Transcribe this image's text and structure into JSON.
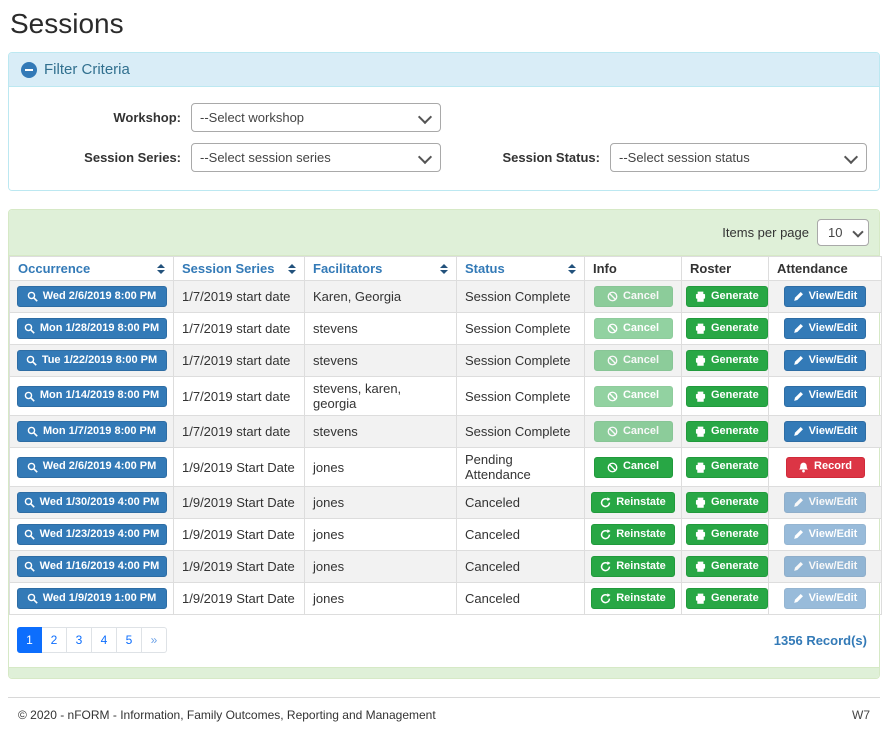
{
  "page": {
    "title": "Sessions"
  },
  "filter_panel": {
    "title": "Filter Criteria",
    "collapse_icon": "minus-circle-icon",
    "fields": {
      "workshop": {
        "label": "Workshop:",
        "selected": "--Select workshop"
      },
      "session_series": {
        "label": "Session Series:",
        "selected": "--Select session series"
      },
      "session_status": {
        "label": "Session Status:",
        "selected": "--Select session status"
      }
    }
  },
  "sessions_panel": {
    "items_per_page": {
      "label": "Items per page",
      "selected": "10"
    },
    "columns": [
      {
        "label": "Occurrence",
        "sortable": true
      },
      {
        "label": "Session Series",
        "sortable": true
      },
      {
        "label": "Facilitators",
        "sortable": true
      },
      {
        "label": "Status",
        "sortable": true
      },
      {
        "label": "Info",
        "sortable": false
      },
      {
        "label": "Roster",
        "sortable": false
      },
      {
        "label": "Attendance",
        "sortable": false
      }
    ],
    "rows": [
      {
        "occurrence": {
          "icon": "search",
          "label": "Wed 2/6/2019 8:00 PM"
        },
        "session_series": "1/7/2019 start date",
        "facilitators": "Karen, Georgia",
        "status": "Session Complete",
        "info": {
          "label": "Cancel",
          "icon": "ban",
          "color": "green",
          "disabled": true
        },
        "roster": {
          "label": "Generate",
          "icon": "printer",
          "color": "green",
          "disabled": false
        },
        "attendance": {
          "label": "View/Edit",
          "icon": "pencil",
          "color": "blue",
          "disabled": false
        }
      },
      {
        "occurrence": {
          "icon": "search",
          "label": "Mon 1/28/2019 8:00 PM"
        },
        "session_series": "1/7/2019 start date",
        "facilitators": "stevens",
        "status": "Session Complete",
        "info": {
          "label": "Cancel",
          "icon": "ban",
          "color": "green",
          "disabled": true
        },
        "roster": {
          "label": "Generate",
          "icon": "printer",
          "color": "green",
          "disabled": false
        },
        "attendance": {
          "label": "View/Edit",
          "icon": "pencil",
          "color": "blue",
          "disabled": false
        }
      },
      {
        "occurrence": {
          "icon": "search",
          "label": "Tue 1/22/2019 8:00 PM"
        },
        "session_series": "1/7/2019 start date",
        "facilitators": "stevens",
        "status": "Session Complete",
        "info": {
          "label": "Cancel",
          "icon": "ban",
          "color": "green",
          "disabled": true
        },
        "roster": {
          "label": "Generate",
          "icon": "printer",
          "color": "green",
          "disabled": false
        },
        "attendance": {
          "label": "View/Edit",
          "icon": "pencil",
          "color": "blue",
          "disabled": false
        }
      },
      {
        "occurrence": {
          "icon": "search",
          "label": "Mon 1/14/2019 8:00 PM"
        },
        "session_series": "1/7/2019 start date",
        "facilitators": "stevens, karen, georgia",
        "status": "Session Complete",
        "info": {
          "label": "Cancel",
          "icon": "ban",
          "color": "green",
          "disabled": true
        },
        "roster": {
          "label": "Generate",
          "icon": "printer",
          "color": "green",
          "disabled": false
        },
        "attendance": {
          "label": "View/Edit",
          "icon": "pencil",
          "color": "blue",
          "disabled": false
        }
      },
      {
        "occurrence": {
          "icon": "search",
          "label": "Mon 1/7/2019 8:00 PM"
        },
        "session_series": "1/7/2019 start date",
        "facilitators": "stevens",
        "status": "Session Complete",
        "info": {
          "label": "Cancel",
          "icon": "ban",
          "color": "green",
          "disabled": true
        },
        "roster": {
          "label": "Generate",
          "icon": "printer",
          "color": "green",
          "disabled": false
        },
        "attendance": {
          "label": "View/Edit",
          "icon": "pencil",
          "color": "blue",
          "disabled": false
        }
      },
      {
        "occurrence": {
          "icon": "search",
          "label": "Wed 2/6/2019 4:00 PM"
        },
        "session_series": "1/9/2019 Start Date",
        "facilitators": "jones",
        "status": "Pending Attendance",
        "info": {
          "label": "Cancel",
          "icon": "ban",
          "color": "green",
          "disabled": false
        },
        "roster": {
          "label": "Generate",
          "icon": "printer",
          "color": "green",
          "disabled": false
        },
        "attendance": {
          "label": "Record",
          "icon": "bell",
          "color": "red",
          "disabled": false
        }
      },
      {
        "occurrence": {
          "icon": "search",
          "label": "Wed 1/30/2019 4:00 PM"
        },
        "session_series": "1/9/2019 Start Date",
        "facilitators": "jones",
        "status": "Canceled",
        "info": {
          "label": "Reinstate",
          "icon": "undo",
          "color": "green",
          "disabled": false
        },
        "roster": {
          "label": "Generate",
          "icon": "printer",
          "color": "green",
          "disabled": false
        },
        "attendance": {
          "label": "View/Edit",
          "icon": "pencil",
          "color": "blue",
          "disabled": true
        }
      },
      {
        "occurrence": {
          "icon": "search",
          "label": "Wed 1/23/2019 4:00 PM"
        },
        "session_series": "1/9/2019 Start Date",
        "facilitators": "jones",
        "status": "Canceled",
        "info": {
          "label": "Reinstate",
          "icon": "undo",
          "color": "green",
          "disabled": false
        },
        "roster": {
          "label": "Generate",
          "icon": "printer",
          "color": "green",
          "disabled": false
        },
        "attendance": {
          "label": "View/Edit",
          "icon": "pencil",
          "color": "blue",
          "disabled": true
        }
      },
      {
        "occurrence": {
          "icon": "search",
          "label": "Wed 1/16/2019 4:00 PM"
        },
        "session_series": "1/9/2019 Start Date",
        "facilitators": "jones",
        "status": "Canceled",
        "info": {
          "label": "Reinstate",
          "icon": "undo",
          "color": "green",
          "disabled": false
        },
        "roster": {
          "label": "Generate",
          "icon": "printer",
          "color": "green",
          "disabled": false
        },
        "attendance": {
          "label": "View/Edit",
          "icon": "pencil",
          "color": "blue",
          "disabled": true
        }
      },
      {
        "occurrence": {
          "icon": "search",
          "label": "Wed 1/9/2019 1:00 PM"
        },
        "session_series": "1/9/2019 Start Date",
        "facilitators": "jones",
        "status": "Canceled",
        "info": {
          "label": "Reinstate",
          "icon": "undo",
          "color": "green",
          "disabled": false
        },
        "roster": {
          "label": "Generate",
          "icon": "printer",
          "color": "green",
          "disabled": false
        },
        "attendance": {
          "label": "View/Edit",
          "icon": "pencil",
          "color": "blue",
          "disabled": true
        }
      }
    ],
    "pagination": {
      "pages": [
        "1",
        "2",
        "3",
        "4",
        "5",
        "»"
      ],
      "active_page": "1"
    },
    "record_count": "1356 Record(s)"
  },
  "footer": {
    "copyright": "© 2020 - nFORM - Information, Family Outcomes, Reporting and Management",
    "right_label": "W7"
  },
  "colors": {
    "primary_blue": "#337ab7",
    "success_green": "#28a745",
    "danger_red": "#dc3545",
    "filter_header_bg": "#d9edf7",
    "filter_header_text": "#31708f",
    "table_header_bg": "#dff0d8",
    "pagination_active": "#0d6efd",
    "row_stripe": "#f2f2f2"
  }
}
